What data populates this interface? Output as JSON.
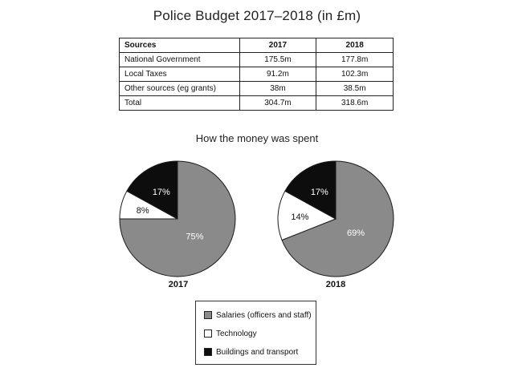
{
  "title": "Police Budget 2017–2018 (in £m)",
  "table": {
    "headers": [
      "Sources",
      "2017",
      "2018"
    ],
    "rows": [
      [
        "National Government",
        "175.5m",
        "177.8m"
      ],
      [
        "Local Taxes",
        "91.2m",
        "102.3m"
      ],
      [
        "Other sources (eg grants)",
        "38m",
        "38.5m"
      ],
      [
        "Total",
        "304.7m",
        "318.6m"
      ]
    ]
  },
  "subtitle": "How the money was spent",
  "colors": {
    "salaries": "#8a8a8a",
    "technology": "#ffffff",
    "buildings": "#0d0d0d"
  },
  "legend": [
    "Salaries (officers and staff)",
    "Technology",
    "Buildings and transport"
  ],
  "chart_data": [
    {
      "type": "pie",
      "title": "2017",
      "labels": [
        "Salaries (officers and staff)",
        "Technology",
        "Buildings and transport"
      ],
      "values": [
        75,
        8,
        17
      ],
      "value_labels": [
        "75%",
        "8%",
        "17%"
      ]
    },
    {
      "type": "pie",
      "title": "2018",
      "labels": [
        "Salaries (officers and staff)",
        "Technology",
        "Buildings and transport"
      ],
      "values": [
        69,
        14,
        17
      ],
      "value_labels": [
        "69%",
        "14%",
        "17%"
      ]
    }
  ]
}
